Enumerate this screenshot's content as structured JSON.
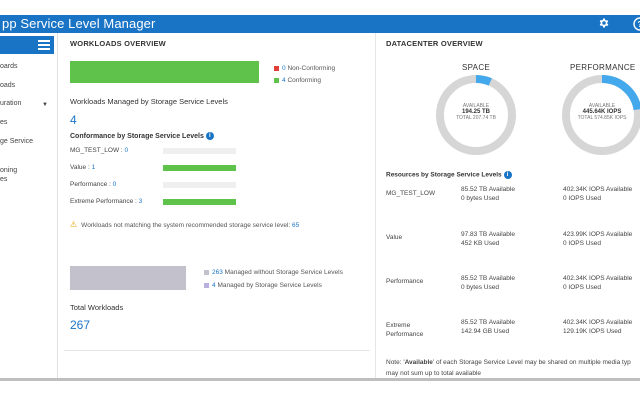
{
  "header": {
    "title": "pp Service Level Manager",
    "gear_icon": "gear-icon",
    "help_icon": "help-icon",
    "help_glyph": "?"
  },
  "sidebar": {
    "items": [
      {
        "label": "oards"
      },
      {
        "label": "oads"
      },
      {
        "label": "uration"
      },
      {
        "label": "es"
      },
      {
        "label": "ge Service"
      },
      {
        "label": "oning"
      },
      {
        "label": "es"
      }
    ]
  },
  "workloads": {
    "title": "WORKLOADS OVERVIEW",
    "legend_nonconforming_count": "0",
    "legend_nonconforming_label": "Non-Conforming",
    "legend_conforming_count": "4",
    "legend_conforming_label": "Conforming",
    "managed_label": "Workloads Managed by Storage Service Levels",
    "managed_count": "4",
    "conformance_title": "Conformance by Storage Service Levels",
    "rows": [
      {
        "name": "MG_TEST_LOW :",
        "count": "0",
        "fraction": 0
      },
      {
        "name": "Value :",
        "count": "1",
        "fraction": 1
      },
      {
        "name": "Performance :",
        "count": "0",
        "fraction": 0
      },
      {
        "name": "Extreme Performance :",
        "count": "3",
        "fraction": 1
      }
    ],
    "warning_text": "Workloads not matching the system recommended storage service level:",
    "warning_count": "65",
    "unmanaged_count": "263",
    "unmanaged_label": "Managed without Storage Service Levels",
    "managed_ssl_count": "4",
    "managed_ssl_label": "Managed by Storage Service Levels",
    "total_label": "Total Workloads",
    "total_count": "267"
  },
  "datacenter": {
    "title": "DATACENTER OVERVIEW",
    "space": {
      "title": "SPACE",
      "available_label": "AVAILABLE",
      "available_value": "194.25 TB",
      "total_text": "TOTAL 207.74 TB",
      "used_fraction": 0.065
    },
    "performance": {
      "title": "PERFORMANCE",
      "available_label": "AVAILABLE",
      "available_value": "445.64K IOPS",
      "total_text": "TOTAL 574.85K IOPS",
      "used_fraction": 0.225
    },
    "resources_title": "Resources by Storage Service Levels",
    "resources": [
      {
        "name": "MG_TEST_LOW",
        "space1": "85.52 TB Available",
        "space2": "0 bytes Used",
        "perf1": "402.34K IOPS Available",
        "perf2": "0 IOPS Used"
      },
      {
        "name": "Value",
        "space1": "97.83 TB Available",
        "space2": "452 KB Used",
        "perf1": "423.99K IOPS Available",
        "perf2": "0 IOPS Used"
      },
      {
        "name": "Performance",
        "space1": "85.52 TB Available",
        "space2": "0 bytes Used",
        "perf1": "402.34K IOPS Available",
        "perf2": "0 IOPS Used"
      },
      {
        "name": "Extreme",
        "name2": "Performance",
        "space1": "85.52 TB Available",
        "space2": "142.94 GB Used",
        "perf1": "402.34K IOPS Available",
        "perf2": "129.19K IOPS Used"
      }
    ],
    "note_prefix": "Note: '",
    "note_bold": "Available",
    "note_rest": "' of each Storage Service Level may be shared on multiple media typ",
    "note_line2": "may not sum up to total available"
  },
  "colors": {
    "accent": "#1a74c6",
    "conforming": "#5fc24a",
    "nonconforming": "#e0403a",
    "unmanaged": "#c3c1cc",
    "managed_ssl": "#b9b0e0",
    "warning": "#f0a500"
  }
}
